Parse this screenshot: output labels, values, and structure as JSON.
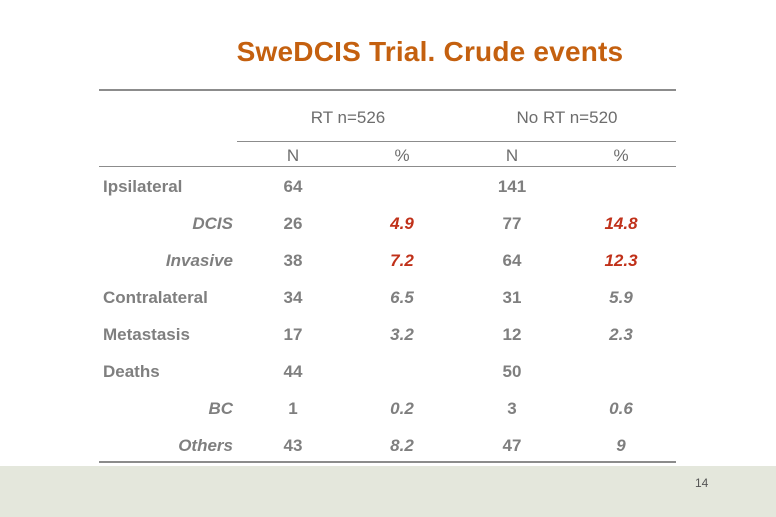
{
  "title": "SweDCIS Trial. Crude events",
  "groups": {
    "rt": "RT n=526",
    "no_rt": "No RT n=520"
  },
  "subheaders": {
    "rt_n": "N",
    "rt_pct": "%",
    "no_rt_n": "N",
    "no_rt_pct": "%"
  },
  "rows": [
    {
      "label": "Ipsilateral",
      "rt_n": "64",
      "rt_pct": "",
      "no_rt_n": "141",
      "no_rt_pct": ""
    },
    {
      "label": "DCIS",
      "rt_n": "26",
      "rt_pct": "4.9",
      "no_rt_n": "77",
      "no_rt_pct": "14.8"
    },
    {
      "label": "Invasive",
      "rt_n": "38",
      "rt_pct": "7.2",
      "no_rt_n": "64",
      "no_rt_pct": "12.3"
    },
    {
      "label": "Contralateral",
      "rt_n": "34",
      "rt_pct": "6.5",
      "no_rt_n": "31",
      "no_rt_pct": "5.9"
    },
    {
      "label": "Metastasis",
      "rt_n": "17",
      "rt_pct": "3.2",
      "no_rt_n": "12",
      "no_rt_pct": "2.3"
    },
    {
      "label": "Deaths",
      "rt_n": "44",
      "rt_pct": "",
      "no_rt_n": "50",
      "no_rt_pct": ""
    },
    {
      "label": "BC",
      "rt_n": "1",
      "rt_pct": "0.2",
      "no_rt_n": "3",
      "no_rt_pct": "0.6"
    },
    {
      "label": "Others",
      "rt_n": "43",
      "rt_pct": "8.2",
      "no_rt_n": "47",
      "no_rt_pct": "9"
    }
  ],
  "page_number": "14",
  "colors": {
    "title": "#c4600f",
    "highlight": "#c0311a",
    "text": "#7f7f7f",
    "footer_band": "#e4e7dc"
  }
}
